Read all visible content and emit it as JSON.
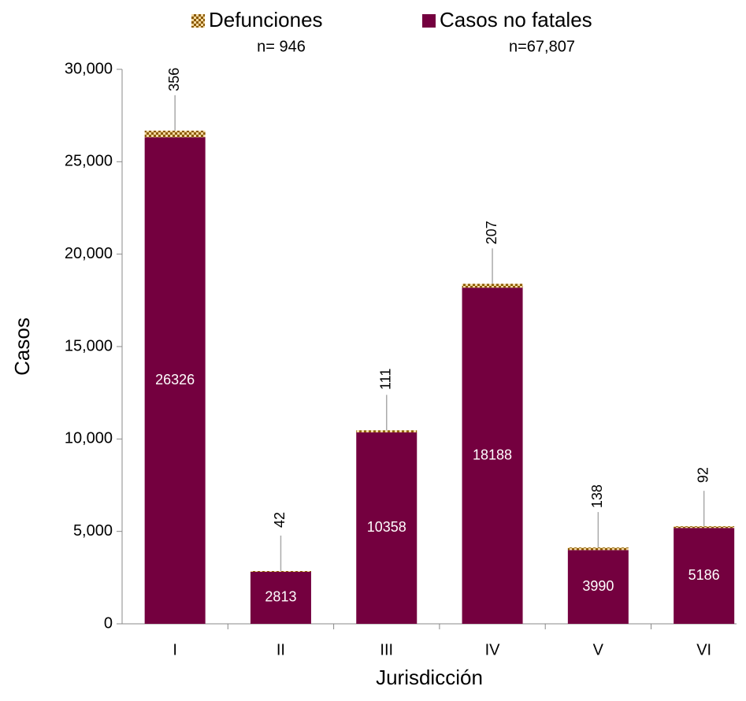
{
  "chart_data": {
    "type": "stacked_bar",
    "xlabel": "Jurisdicción",
    "ylabel": "Casos",
    "categories": [
      "I",
      "II",
      "III",
      "IV",
      "V",
      "VI"
    ],
    "series": [
      {
        "name": "Casos no fatales",
        "n_label": "n=67,807",
        "color": "#74003f",
        "values": [
          26326,
          2813,
          10358,
          18188,
          3990,
          5186
        ]
      },
      {
        "name": "Defunciones",
        "n_label": "n= 946",
        "color": "#8b5a00",
        "pattern": "hatch",
        "values": [
          356,
          42,
          111,
          207,
          138,
          92
        ]
      }
    ],
    "ylim": [
      0,
      30000
    ],
    "yticks": [
      0,
      {
        "value": 5000,
        "label": "5,000"
      },
      {
        "value": 10000,
        "label": "10,000"
      },
      {
        "value": 15000,
        "label": "15,000"
      },
      {
        "value": 20000,
        "label": "20,000"
      },
      {
        "value": 25000,
        "label": "25,000"
      },
      {
        "value": 30000,
        "label": "30,000"
      }
    ]
  }
}
